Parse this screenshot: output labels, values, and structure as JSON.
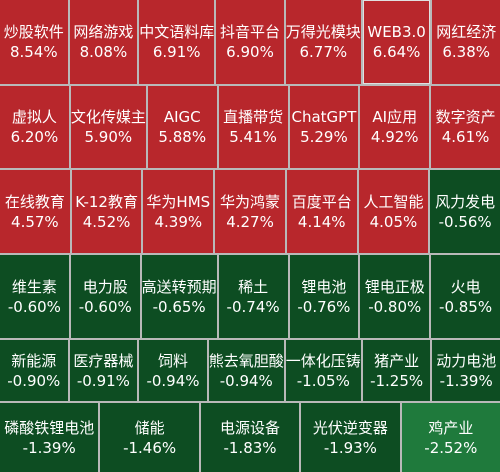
{
  "colors": {
    "up": "#b8272c",
    "down": "#0d4d22",
    "strong_down": "#1f7a3c"
  },
  "rows": [
    [
      {
        "name": "炒股软件",
        "pct": "8.54%",
        "dir": "up"
      },
      {
        "name": "网络游戏",
        "pct": "8.08%",
        "dir": "up"
      },
      {
        "name": "中文语料库",
        "pct": "6.91%",
        "dir": "up"
      },
      {
        "name": "抖音平台",
        "pct": "6.90%",
        "dir": "up"
      },
      {
        "name": "万得光模块",
        "pct": "6.77%",
        "dir": "up"
      },
      {
        "name": "WEB3.0",
        "pct": "6.64%",
        "dir": "up",
        "selected": true
      },
      {
        "name": "网红经济",
        "pct": "6.38%",
        "dir": "up"
      }
    ],
    [
      {
        "name": "虚拟人",
        "pct": "6.20%",
        "dir": "up"
      },
      {
        "name": "文化传媒主",
        "pct": "5.90%",
        "dir": "up"
      },
      {
        "name": "AIGC",
        "pct": "5.88%",
        "dir": "up"
      },
      {
        "name": "直播带货",
        "pct": "5.41%",
        "dir": "up"
      },
      {
        "name": "ChatGPT",
        "pct": "5.29%",
        "dir": "up"
      },
      {
        "name": "AI应用",
        "pct": "4.92%",
        "dir": "up"
      },
      {
        "name": "数字资产",
        "pct": "4.61%",
        "dir": "up"
      }
    ],
    [
      {
        "name": "在线教育",
        "pct": "4.57%",
        "dir": "up"
      },
      {
        "name": "K-12教育",
        "pct": "4.52%",
        "dir": "up"
      },
      {
        "name": "华为HMS",
        "pct": "4.39%",
        "dir": "up"
      },
      {
        "name": "华为鸿蒙",
        "pct": "4.27%",
        "dir": "up"
      },
      {
        "name": "百度平台",
        "pct": "4.14%",
        "dir": "up"
      },
      {
        "name": "人工智能",
        "pct": "4.05%",
        "dir": "up"
      },
      {
        "name": "风力发电",
        "pct": "-0.56%",
        "dir": "down"
      }
    ],
    [
      {
        "name": "维生素",
        "pct": "-0.60%",
        "dir": "down"
      },
      {
        "name": "电力股",
        "pct": "-0.60%",
        "dir": "down"
      },
      {
        "name": "高送转预期",
        "pct": "-0.65%",
        "dir": "down"
      },
      {
        "name": "稀土",
        "pct": "-0.74%",
        "dir": "down"
      },
      {
        "name": "锂电池",
        "pct": "-0.76%",
        "dir": "down"
      },
      {
        "name": "锂电正极",
        "pct": "-0.80%",
        "dir": "down"
      },
      {
        "name": "火电",
        "pct": "-0.85%",
        "dir": "down"
      }
    ],
    [
      {
        "name": "新能源",
        "pct": "-0.90%",
        "dir": "down"
      },
      {
        "name": "医疗器械",
        "pct": "-0.91%",
        "dir": "down"
      },
      {
        "name": "饲料",
        "pct": "-0.94%",
        "dir": "down"
      },
      {
        "name": "熊去氧胆酸",
        "pct": "-0.94%",
        "dir": "down"
      },
      {
        "name": "一体化压铸",
        "pct": "-1.05%",
        "dir": "down"
      },
      {
        "name": "猪产业",
        "pct": "-1.25%",
        "dir": "down"
      },
      {
        "name": "动力电池",
        "pct": "-1.39%",
        "dir": "down"
      }
    ],
    [
      {
        "name": "磷酸铁锂电池",
        "pct": "-1.39%",
        "dir": "down"
      },
      {
        "name": "储能",
        "pct": "-1.46%",
        "dir": "down"
      },
      {
        "name": "电源设备",
        "pct": "-1.83%",
        "dir": "down"
      },
      {
        "name": "光伏逆变器",
        "pct": "-1.93%",
        "dir": "down"
      },
      {
        "name": "鸡产业",
        "pct": "-2.52%",
        "dir": "strong_down"
      }
    ]
  ]
}
